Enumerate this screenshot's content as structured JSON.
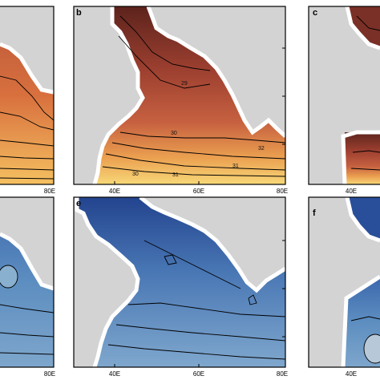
{
  "panels": [
    {
      "id": "a",
      "label": "",
      "tick_bottom": "80E"
    },
    {
      "id": "b",
      "label": "b",
      "tick_left": "40E",
      "tick_mid": "60E",
      "tick_right": "80E",
      "contour_labels": [
        "29",
        "29",
        "30",
        "31",
        "32",
        "30",
        "31"
      ]
    },
    {
      "id": "c",
      "label": "c",
      "tick_left": "40E"
    },
    {
      "id": "d",
      "label": "",
      "tick_bottom": "80E"
    },
    {
      "id": "e",
      "label": "e",
      "tick_left": "40E",
      "tick_mid": "60E",
      "tick_right": "80E"
    },
    {
      "id": "f",
      "label": "f",
      "tick_left": "40E"
    }
  ],
  "colors": {
    "land": "#d3d3d3",
    "warm_dark": "#6e2a22",
    "warm_mid": "#b8553a",
    "warm_light": "#e88a4c",
    "warm_yellow": "#f5d070",
    "cool_dark": "#2a4f9a",
    "cool_mid": "#4d7db8",
    "cool_light": "#8ab0cf"
  }
}
